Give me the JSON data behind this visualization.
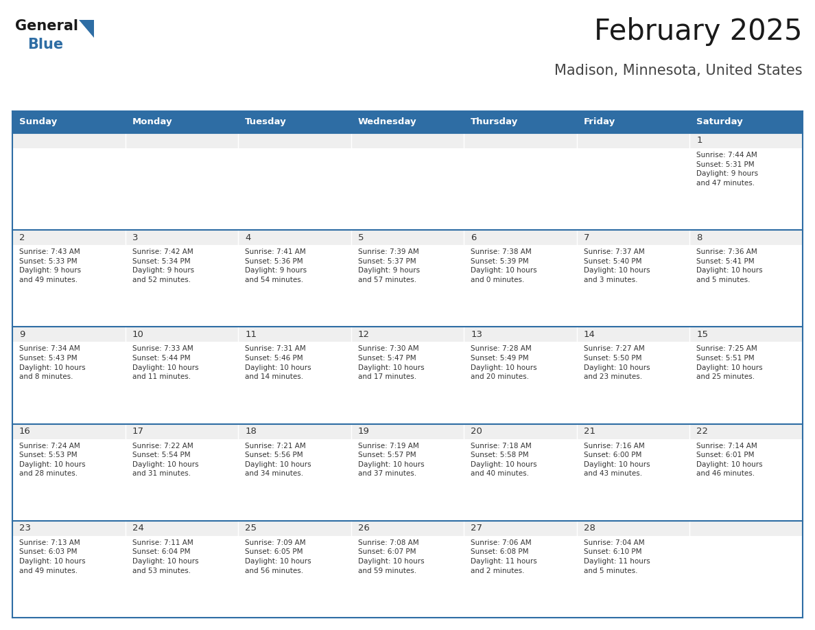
{
  "title": "February 2025",
  "subtitle": "Madison, Minnesota, United States",
  "header_bg": "#2E6DA4",
  "header_text_color": "#FFFFFF",
  "cell_bg": "#FFFFFF",
  "cell_top_bg": "#EFEFEF",
  "divider_color": "#2E6DA4",
  "cell_border_color": "#CCCCCC",
  "text_color": "#333333",
  "day_number_color": "#333333",
  "days_of_week": [
    "Sunday",
    "Monday",
    "Tuesday",
    "Wednesday",
    "Thursday",
    "Friday",
    "Saturday"
  ],
  "weeks": [
    [
      {
        "day": null,
        "info": null
      },
      {
        "day": null,
        "info": null
      },
      {
        "day": null,
        "info": null
      },
      {
        "day": null,
        "info": null
      },
      {
        "day": null,
        "info": null
      },
      {
        "day": null,
        "info": null
      },
      {
        "day": 1,
        "info": "Sunrise: 7:44 AM\nSunset: 5:31 PM\nDaylight: 9 hours\nand 47 minutes."
      }
    ],
    [
      {
        "day": 2,
        "info": "Sunrise: 7:43 AM\nSunset: 5:33 PM\nDaylight: 9 hours\nand 49 minutes."
      },
      {
        "day": 3,
        "info": "Sunrise: 7:42 AM\nSunset: 5:34 PM\nDaylight: 9 hours\nand 52 minutes."
      },
      {
        "day": 4,
        "info": "Sunrise: 7:41 AM\nSunset: 5:36 PM\nDaylight: 9 hours\nand 54 minutes."
      },
      {
        "day": 5,
        "info": "Sunrise: 7:39 AM\nSunset: 5:37 PM\nDaylight: 9 hours\nand 57 minutes."
      },
      {
        "day": 6,
        "info": "Sunrise: 7:38 AM\nSunset: 5:39 PM\nDaylight: 10 hours\nand 0 minutes."
      },
      {
        "day": 7,
        "info": "Sunrise: 7:37 AM\nSunset: 5:40 PM\nDaylight: 10 hours\nand 3 minutes."
      },
      {
        "day": 8,
        "info": "Sunrise: 7:36 AM\nSunset: 5:41 PM\nDaylight: 10 hours\nand 5 minutes."
      }
    ],
    [
      {
        "day": 9,
        "info": "Sunrise: 7:34 AM\nSunset: 5:43 PM\nDaylight: 10 hours\nand 8 minutes."
      },
      {
        "day": 10,
        "info": "Sunrise: 7:33 AM\nSunset: 5:44 PM\nDaylight: 10 hours\nand 11 minutes."
      },
      {
        "day": 11,
        "info": "Sunrise: 7:31 AM\nSunset: 5:46 PM\nDaylight: 10 hours\nand 14 minutes."
      },
      {
        "day": 12,
        "info": "Sunrise: 7:30 AM\nSunset: 5:47 PM\nDaylight: 10 hours\nand 17 minutes."
      },
      {
        "day": 13,
        "info": "Sunrise: 7:28 AM\nSunset: 5:49 PM\nDaylight: 10 hours\nand 20 minutes."
      },
      {
        "day": 14,
        "info": "Sunrise: 7:27 AM\nSunset: 5:50 PM\nDaylight: 10 hours\nand 23 minutes."
      },
      {
        "day": 15,
        "info": "Sunrise: 7:25 AM\nSunset: 5:51 PM\nDaylight: 10 hours\nand 25 minutes."
      }
    ],
    [
      {
        "day": 16,
        "info": "Sunrise: 7:24 AM\nSunset: 5:53 PM\nDaylight: 10 hours\nand 28 minutes."
      },
      {
        "day": 17,
        "info": "Sunrise: 7:22 AM\nSunset: 5:54 PM\nDaylight: 10 hours\nand 31 minutes."
      },
      {
        "day": 18,
        "info": "Sunrise: 7:21 AM\nSunset: 5:56 PM\nDaylight: 10 hours\nand 34 minutes."
      },
      {
        "day": 19,
        "info": "Sunrise: 7:19 AM\nSunset: 5:57 PM\nDaylight: 10 hours\nand 37 minutes."
      },
      {
        "day": 20,
        "info": "Sunrise: 7:18 AM\nSunset: 5:58 PM\nDaylight: 10 hours\nand 40 minutes."
      },
      {
        "day": 21,
        "info": "Sunrise: 7:16 AM\nSunset: 6:00 PM\nDaylight: 10 hours\nand 43 minutes."
      },
      {
        "day": 22,
        "info": "Sunrise: 7:14 AM\nSunset: 6:01 PM\nDaylight: 10 hours\nand 46 minutes."
      }
    ],
    [
      {
        "day": 23,
        "info": "Sunrise: 7:13 AM\nSunset: 6:03 PM\nDaylight: 10 hours\nand 49 minutes."
      },
      {
        "day": 24,
        "info": "Sunrise: 7:11 AM\nSunset: 6:04 PM\nDaylight: 10 hours\nand 53 minutes."
      },
      {
        "day": 25,
        "info": "Sunrise: 7:09 AM\nSunset: 6:05 PM\nDaylight: 10 hours\nand 56 minutes."
      },
      {
        "day": 26,
        "info": "Sunrise: 7:08 AM\nSunset: 6:07 PM\nDaylight: 10 hours\nand 59 minutes."
      },
      {
        "day": 27,
        "info": "Sunrise: 7:06 AM\nSunset: 6:08 PM\nDaylight: 11 hours\nand 2 minutes."
      },
      {
        "day": 28,
        "info": "Sunrise: 7:04 AM\nSunset: 6:10 PM\nDaylight: 11 hours\nand 5 minutes."
      },
      {
        "day": null,
        "info": null
      }
    ]
  ],
  "logo_text_general": "General",
  "logo_text_blue": "Blue",
  "logo_triangle_color": "#2E6DA4",
  "logo_general_color": "#1a1a1a"
}
